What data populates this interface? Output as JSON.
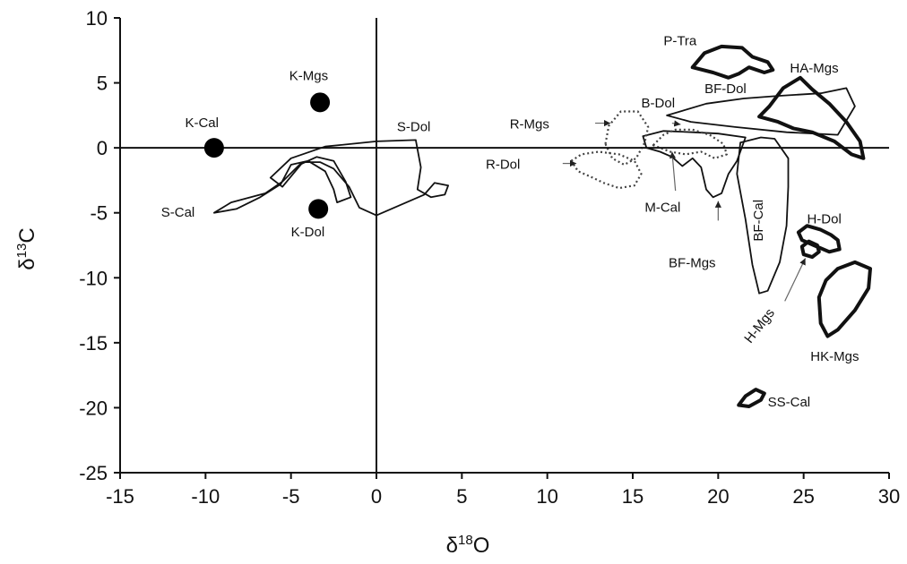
{
  "chart_data": {
    "type": "scatter",
    "xlabel": {
      "prefix": "δ",
      "sup": "18",
      "main": "O"
    },
    "ylabel": {
      "prefix": "δ",
      "sup": "13",
      "main": "C"
    },
    "xlim": [
      -15,
      30
    ],
    "ylim": [
      -25,
      10
    ],
    "xticks": [
      -15,
      -10,
      -5,
      0,
      5,
      10,
      15,
      20,
      25,
      30
    ],
    "yticks": [
      -25,
      -20,
      -15,
      -10,
      -5,
      0,
      5,
      10
    ],
    "zero_lines": true,
    "points": [
      {
        "label": "K-Cal",
        "x": -9.5,
        "y": 0.0
      },
      {
        "label": "K-Mgs",
        "x": -3.3,
        "y": 3.5
      },
      {
        "label": "K-Dol",
        "x": -3.4,
        "y": -4.7
      }
    ],
    "regions": [
      {
        "label": "S-Cal",
        "style": "thin",
        "outline": [
          [
            -9.5,
            -5.0
          ],
          [
            -8.5,
            -4.2
          ],
          [
            -6.5,
            -3.5
          ],
          [
            -5.5,
            -2.6
          ],
          [
            -4.5,
            -1.3
          ],
          [
            -3.5,
            -0.7
          ],
          [
            -2.5,
            -1.0
          ],
          [
            -1.8,
            -2.6
          ],
          [
            -1.5,
            -3.8
          ],
          [
            -2.3,
            -4.2
          ],
          [
            -2.5,
            -3.2
          ],
          [
            -3.0,
            -1.8
          ],
          [
            -4.0,
            -1.0
          ],
          [
            -5.0,
            -1.3
          ],
          [
            -5.6,
            -2.8
          ],
          [
            -6.8,
            -3.8
          ],
          [
            -8.2,
            -4.7
          ],
          [
            -9.5,
            -5.0
          ]
        ]
      },
      {
        "label": "S-Dol",
        "style": "thin",
        "outline": [
          [
            -6.2,
            -2.3
          ],
          [
            -5.0,
            -0.8
          ],
          [
            -3.0,
            0.1
          ],
          [
            0.0,
            0.5
          ],
          [
            2.3,
            0.6
          ],
          [
            2.6,
            -1.5
          ],
          [
            2.4,
            -3.2
          ],
          [
            3.2,
            -3.8
          ],
          [
            4.0,
            -3.6
          ],
          [
            4.2,
            -2.9
          ],
          [
            3.4,
            -2.7
          ],
          [
            2.8,
            -3.6
          ],
          [
            0.0,
            -5.2
          ],
          [
            -1.0,
            -4.6
          ],
          [
            -1.6,
            -3.0
          ],
          [
            -2.5,
            -1.6
          ],
          [
            -3.3,
            -1.1
          ],
          [
            -4.3,
            -1.1
          ],
          [
            -5.0,
            -2.2
          ],
          [
            -5.5,
            -3.0
          ],
          [
            -6.2,
            -2.3
          ]
        ]
      },
      {
        "label": "P-Tra",
        "style": "thick",
        "outline": [
          [
            18.5,
            6.2
          ],
          [
            19.2,
            7.3
          ],
          [
            20.2,
            7.8
          ],
          [
            21.4,
            7.7
          ],
          [
            22.0,
            7.0
          ],
          [
            22.9,
            6.6
          ],
          [
            23.2,
            6.0
          ],
          [
            22.7,
            5.8
          ],
          [
            21.8,
            6.2
          ],
          [
            21.2,
            5.7
          ],
          [
            20.6,
            5.4
          ],
          [
            19.7,
            5.8
          ],
          [
            18.5,
            6.2
          ]
        ]
      },
      {
        "label": "HA-Mgs",
        "style": "thick",
        "outline": [
          [
            22.4,
            2.4
          ],
          [
            23.0,
            3.2
          ],
          [
            23.8,
            4.6
          ],
          [
            24.8,
            5.4
          ],
          [
            25.5,
            4.5
          ],
          [
            26.5,
            3.4
          ],
          [
            27.5,
            2.0
          ],
          [
            28.3,
            0.5
          ],
          [
            28.5,
            -0.8
          ],
          [
            27.8,
            -0.5
          ],
          [
            26.8,
            0.5
          ],
          [
            25.5,
            1.2
          ],
          [
            24.4,
            1.5
          ],
          [
            23.5,
            2.0
          ],
          [
            22.4,
            2.4
          ]
        ]
      },
      {
        "label": "BF-Dol",
        "style": "thin",
        "outline": [
          [
            17.0,
            2.5
          ],
          [
            19.3,
            3.4
          ],
          [
            21.5,
            3.8
          ],
          [
            23.5,
            4.0
          ],
          [
            26.0,
            4.2
          ],
          [
            27.5,
            4.6
          ],
          [
            28.0,
            3.2
          ],
          [
            27.0,
            1.0
          ],
          [
            24.0,
            1.2
          ],
          [
            21.0,
            1.6
          ],
          [
            18.4,
            2.0
          ],
          [
            17.0,
            2.5
          ]
        ]
      },
      {
        "label": "BF-Cal",
        "style": "thin",
        "outline": [
          [
            21.3,
            0.4
          ],
          [
            22.5,
            0.8
          ],
          [
            23.3,
            0.7
          ],
          [
            24.1,
            -0.8
          ],
          [
            24.1,
            -3.0
          ],
          [
            24.0,
            -6.0
          ],
          [
            23.6,
            -8.8
          ],
          [
            22.9,
            -11.0
          ],
          [
            22.4,
            -11.2
          ],
          [
            22.0,
            -9.0
          ],
          [
            21.6,
            -5.5
          ],
          [
            21.1,
            -2.0
          ],
          [
            21.3,
            0.4
          ]
        ]
      },
      {
        "label": "BF-Mgs",
        "style": "thin",
        "outline": [
          [
            15.6,
            0.9
          ],
          [
            16.8,
            1.3
          ],
          [
            18.5,
            1.2
          ],
          [
            20.0,
            1.1
          ],
          [
            21.6,
            0.8
          ],
          [
            21.1,
            -1.0
          ],
          [
            20.6,
            -2.0
          ],
          [
            20.2,
            -3.5
          ],
          [
            19.7,
            -3.8
          ],
          [
            19.3,
            -3.2
          ],
          [
            19.0,
            -1.5
          ],
          [
            18.5,
            -0.8
          ],
          [
            17.9,
            -1.4
          ],
          [
            17.3,
            -0.7
          ],
          [
            16.6,
            -0.3
          ],
          [
            15.8,
            0.0
          ],
          [
            15.6,
            0.9
          ]
        ]
      },
      {
        "label": "B-Dol",
        "style": "dotted",
        "outline": [
          [
            16.2,
            0.2
          ],
          [
            16.8,
            1.0
          ],
          [
            17.5,
            1.4
          ],
          [
            18.5,
            1.4
          ],
          [
            19.5,
            1.0
          ],
          [
            20.3,
            0.3
          ],
          [
            20.5,
            -0.5
          ],
          [
            19.8,
            -0.8
          ],
          [
            19.0,
            -0.3
          ],
          [
            18.1,
            -0.5
          ],
          [
            17.2,
            -0.3
          ],
          [
            16.2,
            0.2
          ]
        ]
      },
      {
        "label": "R-Mgs",
        "style": "dotted",
        "outline": [
          [
            13.4,
            0.3
          ],
          [
            13.6,
            1.7
          ],
          [
            14.3,
            2.8
          ],
          [
            15.3,
            2.8
          ],
          [
            15.9,
            1.6
          ],
          [
            15.7,
            0.4
          ],
          [
            15.2,
            -0.8
          ],
          [
            14.5,
            -1.3
          ],
          [
            13.8,
            -0.8
          ],
          [
            13.4,
            0.3
          ]
        ]
      },
      {
        "label": "R-Dol",
        "style": "dotted",
        "outline": [
          [
            11.4,
            -1.0
          ],
          [
            12.0,
            -0.5
          ],
          [
            13.0,
            -0.3
          ],
          [
            14.2,
            -0.5
          ],
          [
            15.1,
            -1.0
          ],
          [
            15.5,
            -2.0
          ],
          [
            15.1,
            -2.9
          ],
          [
            14.2,
            -3.1
          ],
          [
            13.3,
            -2.7
          ],
          [
            12.5,
            -2.2
          ],
          [
            11.8,
            -1.8
          ],
          [
            11.4,
            -1.0
          ]
        ]
      },
      {
        "label": "H-Dol",
        "style": "thick",
        "outline": [
          [
            24.7,
            -6.5
          ],
          [
            25.2,
            -6.0
          ],
          [
            26.0,
            -6.3
          ],
          [
            26.6,
            -6.7
          ],
          [
            27.0,
            -7.1
          ],
          [
            27.1,
            -7.8
          ],
          [
            26.5,
            -8.0
          ],
          [
            25.6,
            -7.5
          ],
          [
            24.9,
            -7.1
          ],
          [
            24.7,
            -6.5
          ]
        ]
      },
      {
        "label": "H-Mgs",
        "style": "thick",
        "outline": [
          [
            24.9,
            -7.6
          ],
          [
            25.3,
            -7.2
          ],
          [
            25.8,
            -7.5
          ],
          [
            25.9,
            -8.0
          ],
          [
            25.5,
            -8.4
          ],
          [
            25.0,
            -8.2
          ],
          [
            24.9,
            -7.6
          ]
        ]
      },
      {
        "label": "HK-Mgs",
        "style": "thick",
        "outline": [
          [
            25.9,
            -11.5
          ],
          [
            26.3,
            -10.2
          ],
          [
            27.0,
            -9.3
          ],
          [
            28.0,
            -8.8
          ],
          [
            28.9,
            -9.3
          ],
          [
            28.8,
            -10.8
          ],
          [
            28.0,
            -12.5
          ],
          [
            27.0,
            -14.0
          ],
          [
            26.4,
            -14.5
          ],
          [
            26.0,
            -13.5
          ],
          [
            25.9,
            -11.5
          ]
        ]
      },
      {
        "label": "SS-Cal",
        "style": "thick",
        "outline": [
          [
            21.2,
            -19.8
          ],
          [
            21.6,
            -19.1
          ],
          [
            22.2,
            -18.6
          ],
          [
            22.7,
            -18.9
          ],
          [
            22.5,
            -19.4
          ],
          [
            21.8,
            -19.9
          ],
          [
            21.2,
            -19.8
          ]
        ]
      },
      {
        "label": "M-Cal",
        "style": "thin",
        "outline": []
      }
    ],
    "labels": [
      {
        "text": "K-Mgs",
        "x": -5.1,
        "y": 5.2
      },
      {
        "text": "K-Cal",
        "x": -11.2,
        "y": 1.6
      },
      {
        "text": "K-Dol",
        "x": -5.0,
        "y": -6.8
      },
      {
        "text": "S-Cal",
        "x": -12.6,
        "y": -5.3
      },
      {
        "text": "S-Dol",
        "x": 1.2,
        "y": 1.3
      },
      {
        "text": "P-Tra",
        "x": 16.8,
        "y": 7.9
      },
      {
        "text": "HA-Mgs",
        "x": 24.2,
        "y": 5.8
      },
      {
        "text": "BF-Dol",
        "x": 19.2,
        "y": 4.2
      },
      {
        "text": "B-Dol",
        "x": 15.5,
        "y": 3.1
      },
      {
        "text": "R-Mgs",
        "x": 7.8,
        "y": 1.5
      },
      {
        "text": "R-Dol",
        "x": 6.4,
        "y": -1.6
      },
      {
        "text": "M-Cal",
        "x": 15.7,
        "y": -4.9
      },
      {
        "text": "BF-Mgs",
        "x": 17.1,
        "y": -9.2
      },
      {
        "text": "BF-Cal",
        "x": 22.6,
        "y": -7.2,
        "rotate": -90
      },
      {
        "text": "H-Dol",
        "x": 25.2,
        "y": -5.8
      },
      {
        "text": "H-Mgs",
        "x": 21.9,
        "y": -15.1,
        "rotate": -52
      },
      {
        "text": "HK-Mgs",
        "x": 25.4,
        "y": -16.4
      },
      {
        "text": "SS-Cal",
        "x": 22.9,
        "y": -19.9
      }
    ],
    "arrows": [
      {
        "from": [
          12.8,
          1.9
        ],
        "to": [
          13.7,
          1.9
        ]
      },
      {
        "from": [
          10.9,
          -1.2
        ],
        "to": [
          11.7,
          -1.2
        ]
      },
      {
        "from": [
          17.3,
          1.9
        ],
        "to": [
          17.8,
          1.8
        ]
      },
      {
        "from": [
          20.0,
          -5.6
        ],
        "to": [
          20.0,
          -4.1
        ]
      },
      {
        "from": [
          17.5,
          -3.3
        ],
        "to": [
          17.3,
          -0.3
        ]
      },
      {
        "from": [
          23.9,
          -11.8
        ],
        "to": [
          25.1,
          -8.5
        ]
      }
    ]
  }
}
